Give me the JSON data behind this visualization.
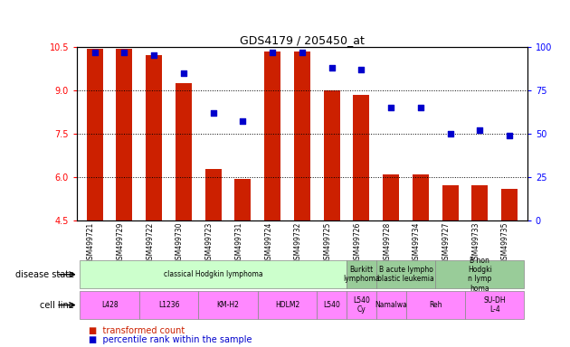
{
  "title": "GDS4179 / 205450_at",
  "samples": [
    "GSM499721",
    "GSM499729",
    "GSM499722",
    "GSM499730",
    "GSM499723",
    "GSM499731",
    "GSM499724",
    "GSM499732",
    "GSM499725",
    "GSM499726",
    "GSM499728",
    "GSM499734",
    "GSM499727",
    "GSM499733",
    "GSM499735"
  ],
  "transformed_counts": [
    10.42,
    10.42,
    10.22,
    9.25,
    6.28,
    5.92,
    10.35,
    10.35,
    9.0,
    8.85,
    6.08,
    6.08,
    5.72,
    5.72,
    5.58
  ],
  "percentile_ranks": [
    97,
    97,
    95,
    85,
    62,
    57,
    97,
    97,
    88,
    87,
    65,
    65,
    50,
    52,
    49
  ],
  "ylim_left": [
    4.5,
    10.5
  ],
  "ylim_right": [
    0,
    100
  ],
  "yticks_left": [
    4.5,
    6.0,
    7.5,
    9.0,
    10.5
  ],
  "yticks_right": [
    0,
    25,
    50,
    75,
    100
  ],
  "bar_color": "#cc2000",
  "dot_color": "#0000cc",
  "ds_regions": [
    [
      0,
      9,
      "classical Hodgkin lymphoma",
      "#ccffcc"
    ],
    [
      9,
      10,
      "Burkitt\nlymphoma",
      "#99cc99"
    ],
    [
      10,
      12,
      "B acute lympho\nblastic leukemia",
      "#99cc99"
    ],
    [
      12,
      15,
      "B non\nHodgki\nn lymp\nhoma",
      "#99cc99"
    ]
  ],
  "cl_regions": [
    [
      0,
      2,
      "L428",
      "#ff88ff"
    ],
    [
      2,
      4,
      "L1236",
      "#ff88ff"
    ],
    [
      4,
      6,
      "KM-H2",
      "#ff88ff"
    ],
    [
      6,
      8,
      "HDLM2",
      "#ff88ff"
    ],
    [
      8,
      9,
      "L540",
      "#ff88ff"
    ],
    [
      9,
      10,
      "L540\nCy",
      "#ff88ff"
    ],
    [
      10,
      11,
      "Namalwa",
      "#ff88ff"
    ],
    [
      11,
      13,
      "Reh",
      "#ff88ff"
    ],
    [
      13,
      15,
      "SU-DH\nL-4",
      "#ff88ff"
    ]
  ],
  "legend_items": [
    [
      "transformed count",
      "#cc2000"
    ],
    [
      "percentile rank within the sample",
      "#0000cc"
    ]
  ]
}
